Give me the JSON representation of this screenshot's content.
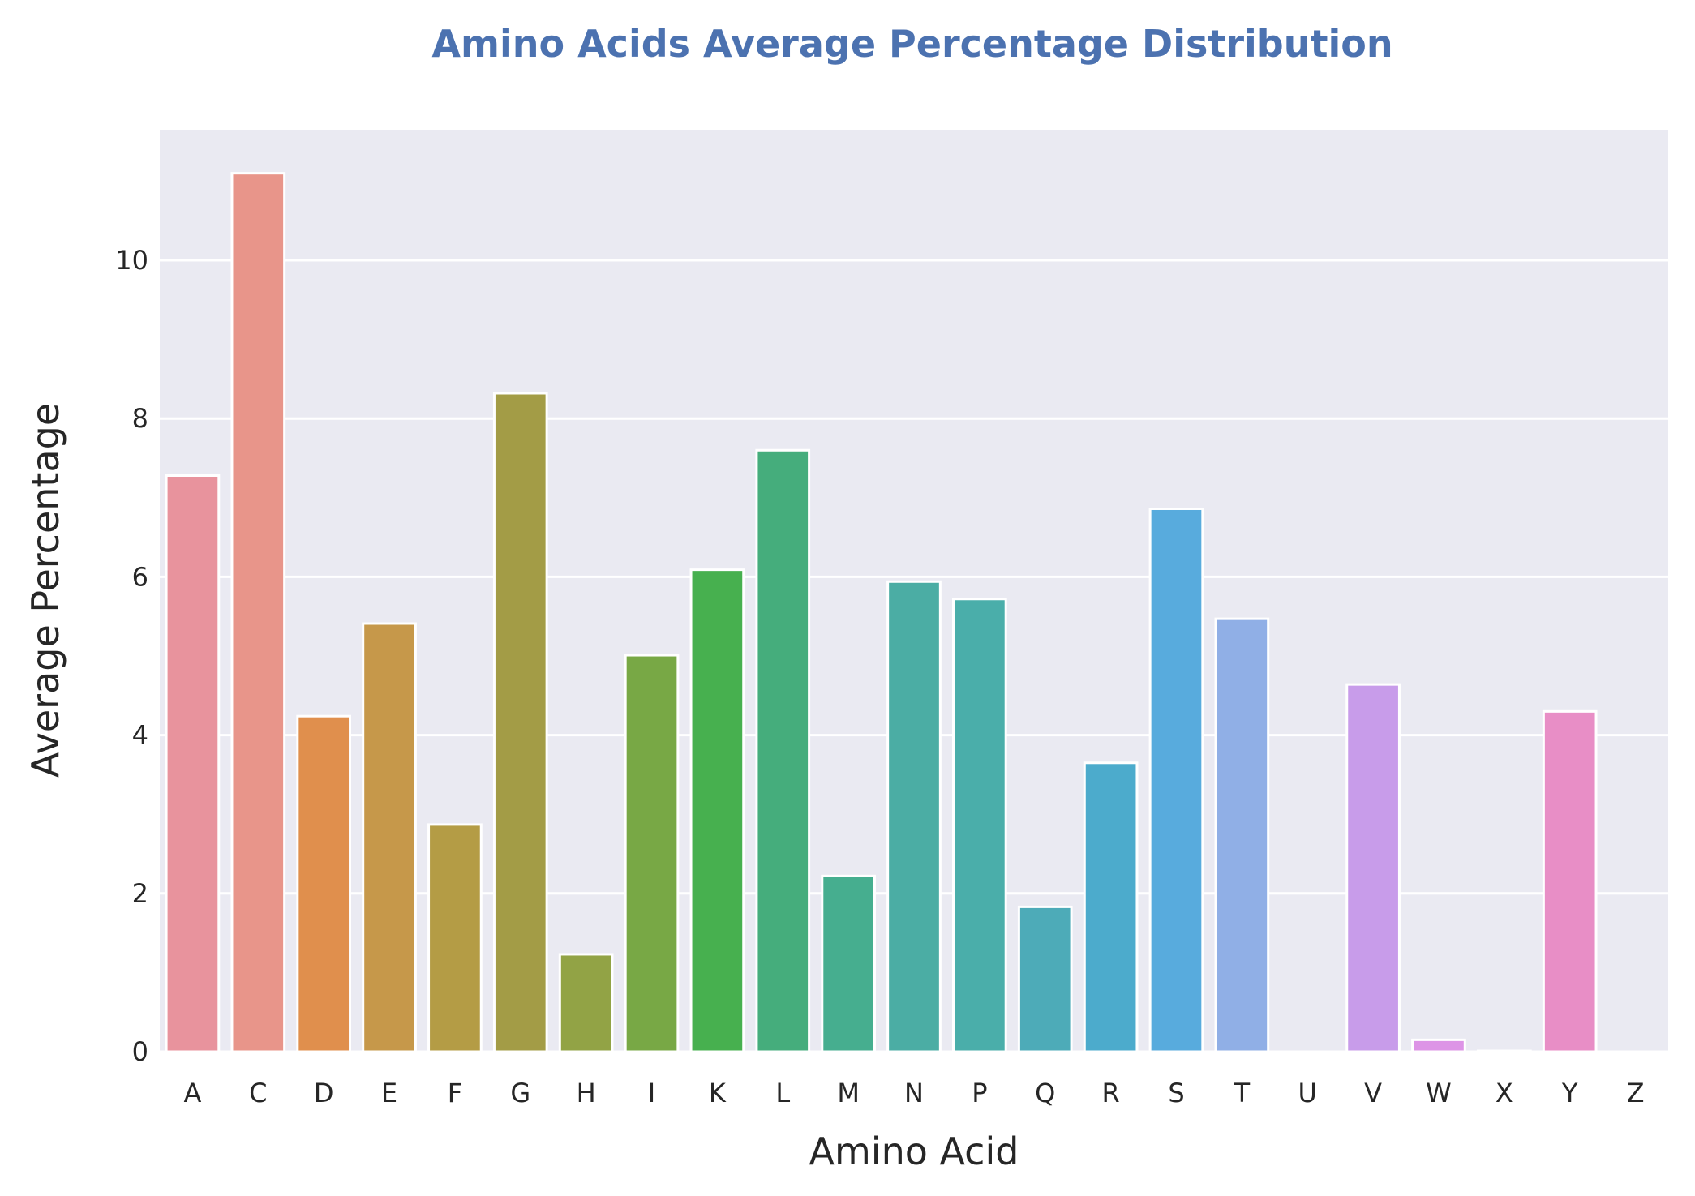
{
  "chart_data": {
    "type": "bar",
    "title": "Amino Acids Average Percentage Distribution",
    "xlabel": "Amino Acid",
    "ylabel": "Average Percentage",
    "categories": [
      "A",
      "C",
      "D",
      "E",
      "F",
      "G",
      "H",
      "I",
      "K",
      "L",
      "M",
      "N",
      "P",
      "Q",
      "R",
      "S",
      "T",
      "U",
      "V",
      "W",
      "X",
      "Y",
      "Z"
    ],
    "values": [
      7.28,
      11.1,
      4.24,
      5.41,
      2.87,
      8.32,
      1.23,
      5.01,
      6.09,
      7.6,
      2.22,
      5.94,
      5.72,
      1.83,
      3.65,
      6.86,
      5.47,
      0,
      4.64,
      0.15,
      0.01,
      4.3,
      0
    ],
    "ylim": [
      0,
      11.65
    ],
    "yticks": [
      0,
      2,
      4,
      6,
      8,
      10
    ],
    "grid": true,
    "colors": [
      "#e8939d",
      "#e8958a",
      "#e08f4d",
      "#c6984a",
      "#b49c45",
      "#a39c46",
      "#92a345",
      "#78a845",
      "#47b04f",
      "#45ad7c",
      "#46ae8f",
      "#4badA4",
      "#4aaeaa",
      "#4dabb8",
      "#4cabcc",
      "#58abdd",
      "#90afe6",
      "#b7a3ea",
      "#c89cea",
      "#dd94e6",
      "#e592d6",
      "#e88ec6",
      "#e88fb4"
    ]
  }
}
